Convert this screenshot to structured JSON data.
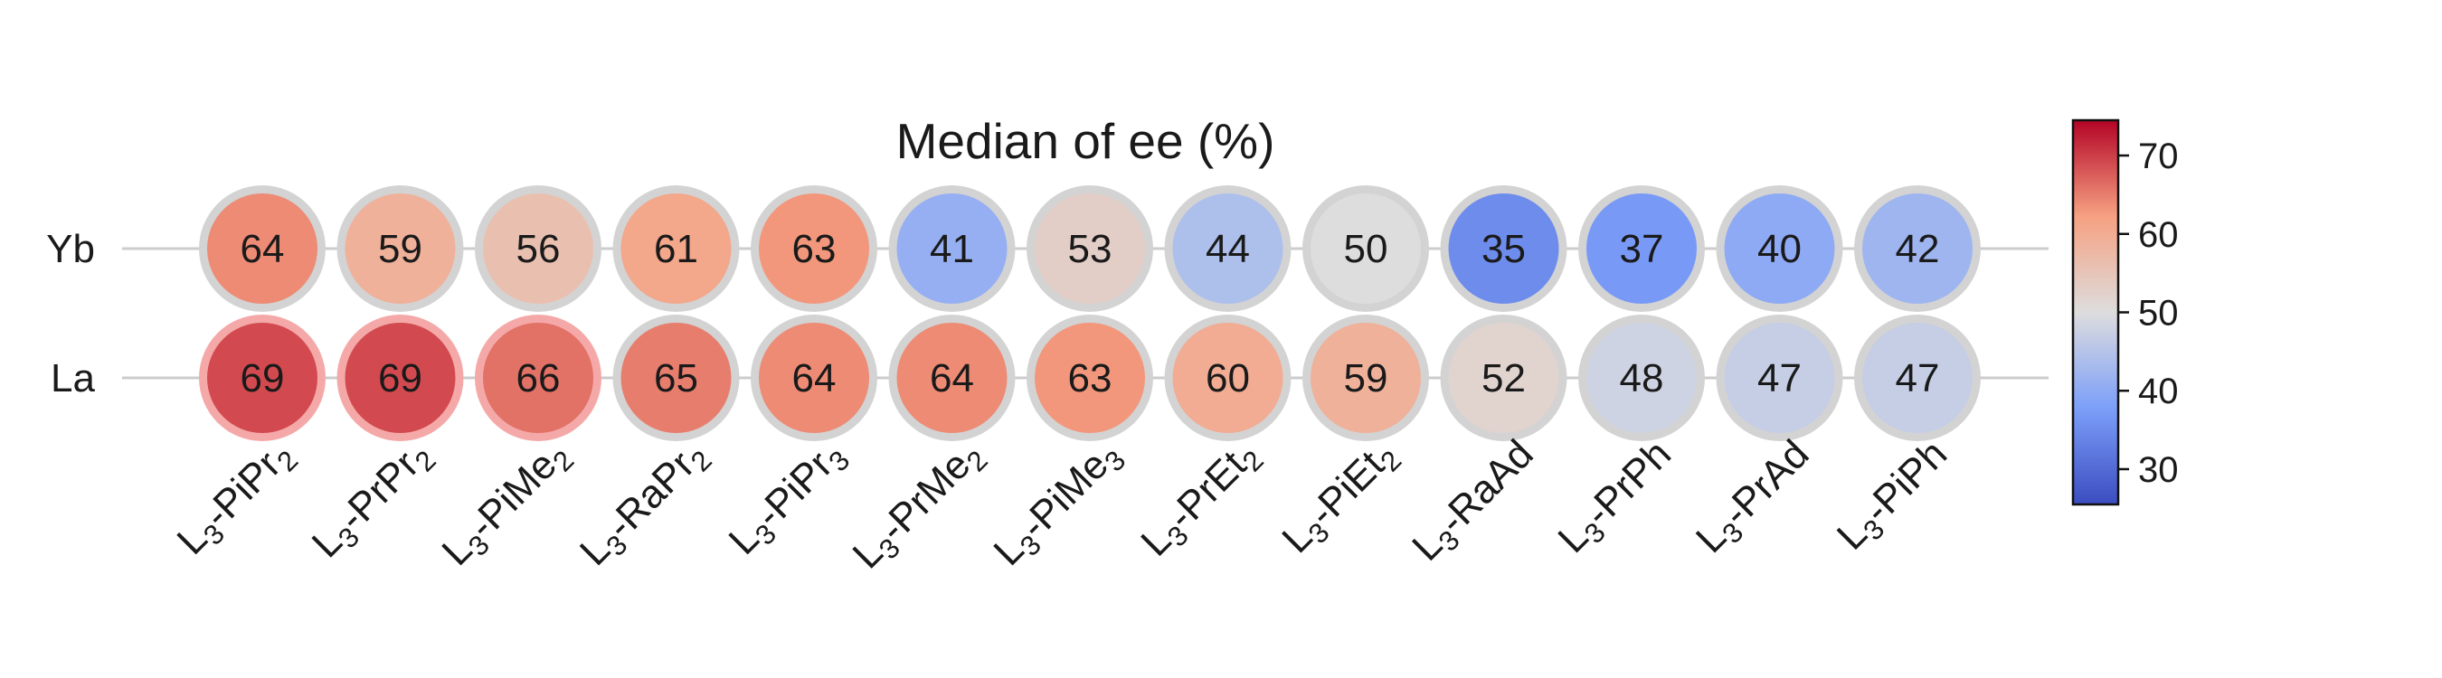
{
  "chart_data": {
    "type": "heatmap",
    "title": "Median of ee (%)",
    "rows": [
      "Yb",
      "La"
    ],
    "columns": [
      {
        "base": "L",
        "sub": "3",
        "rest": "-PiPr",
        "tail": "2"
      },
      {
        "base": "L",
        "sub": "3",
        "rest": "-PrPr",
        "tail": "2"
      },
      {
        "base": "L",
        "sub": "3",
        "rest": "-PiMe",
        "tail": "2"
      },
      {
        "base": "L",
        "sub": "3",
        "rest": "-RaPr",
        "tail": "2"
      },
      {
        "base": "L",
        "sub": "3",
        "rest": "-PiPr",
        "tail": "3"
      },
      {
        "base": "L",
        "sub": "3",
        "rest": "-PrMe",
        "tail": "2"
      },
      {
        "base": "L",
        "sub": "3",
        "rest": "-PiMe",
        "tail": "3"
      },
      {
        "base": "L",
        "sub": "3",
        "rest": "-PrEt",
        "tail": "2"
      },
      {
        "base": "L",
        "sub": "3",
        "rest": "-PiEt",
        "tail": "2"
      },
      {
        "base": "L",
        "sub": "3",
        "rest": "-RaAd",
        "tail": ""
      },
      {
        "base": "L",
        "sub": "3",
        "rest": "-PrPh",
        "tail": ""
      },
      {
        "base": "L",
        "sub": "3",
        "rest": "-PrAd",
        "tail": ""
      },
      {
        "base": "L",
        "sub": "3",
        "rest": "-PiPh",
        "tail": ""
      }
    ],
    "values": [
      [
        64,
        59,
        56,
        61,
        63,
        41,
        53,
        44,
        50,
        35,
        37,
        40,
        42
      ],
      [
        69,
        69,
        66,
        65,
        64,
        64,
        63,
        60,
        59,
        52,
        48,
        47,
        47
      ]
    ],
    "highlighted": [
      [
        false,
        false,
        false,
        false,
        false,
        false,
        false,
        false,
        false,
        false,
        false,
        false,
        false
      ],
      [
        true,
        true,
        true,
        false,
        false,
        false,
        false,
        false,
        false,
        false,
        false,
        false,
        false
      ]
    ],
    "colormap": "coolwarm",
    "color_range": [
      25.5,
      74.5
    ],
    "colorbar_ticks": [
      30,
      40,
      50,
      60,
      70
    ],
    "colors": {
      "ring_default": "#d3d3d3",
      "ring_highlight": "#f4a9a8",
      "row_line": "#cccccc",
      "text": "#1a1a1a"
    }
  }
}
